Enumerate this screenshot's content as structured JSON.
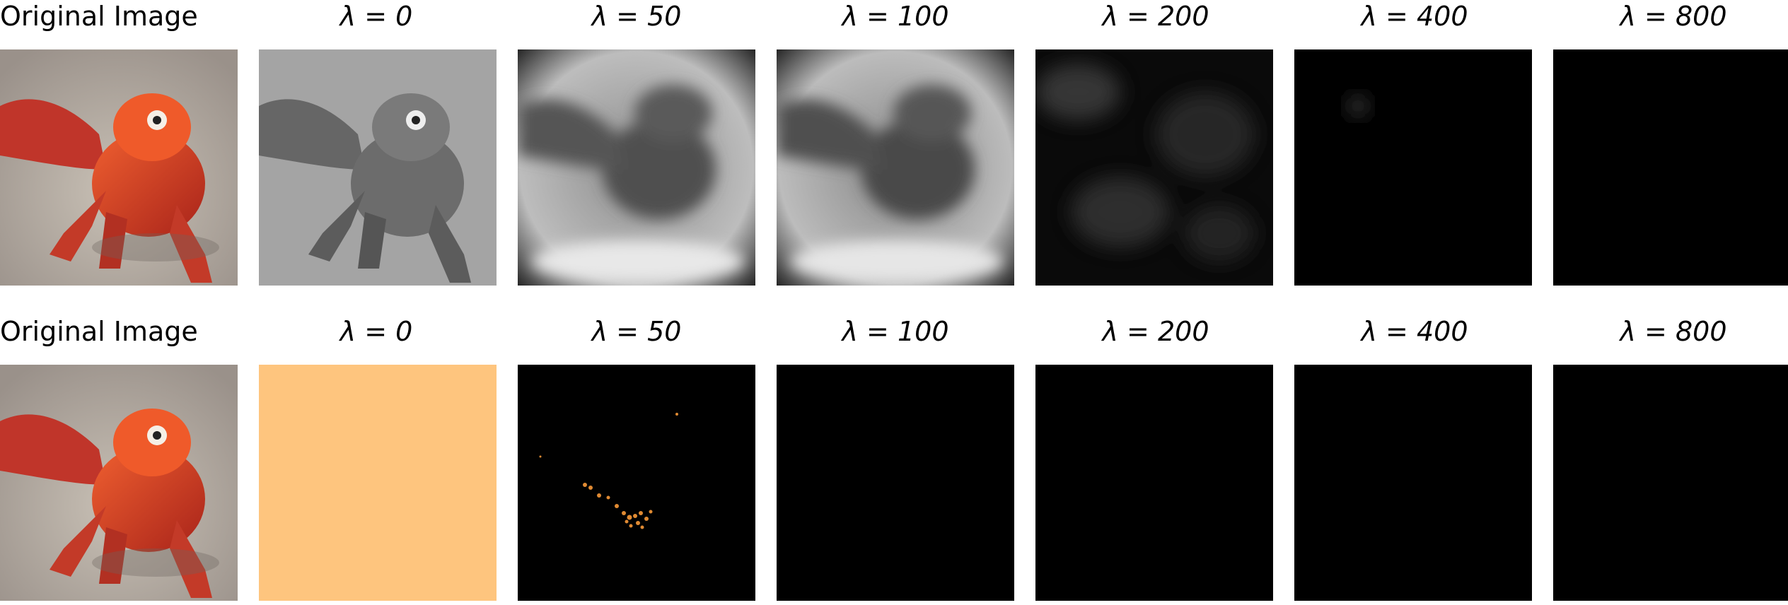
{
  "figure": {
    "rows": [
      {
        "titles": [
          "Original Image",
          "λ = 0",
          "λ = 50",
          "λ = 100",
          "λ = 200",
          "λ = 400",
          "λ = 800"
        ],
        "panels": [
          {
            "kind": "original-photo",
            "subject": "red lizard on sand"
          },
          {
            "kind": "grayscale-photo"
          },
          {
            "kind": "blurred-grayscale"
          },
          {
            "kind": "blurred-grayscale"
          },
          {
            "kind": "dark-blotchy"
          },
          {
            "kind": "near-black"
          },
          {
            "kind": "black"
          }
        ]
      },
      {
        "titles": [
          "Original Image",
          "λ = 0",
          "λ = 50",
          "λ = 100",
          "λ = 200",
          "λ = 400",
          "λ = 800"
        ],
        "panels": [
          {
            "kind": "original-photo",
            "subject": "red lizard on sand"
          },
          {
            "kind": "solid-color",
            "color": "#fec57e"
          },
          {
            "kind": "sparse-orange-specks"
          },
          {
            "kind": "black"
          },
          {
            "kind": "black"
          },
          {
            "kind": "black"
          },
          {
            "kind": "black"
          }
        ]
      }
    ]
  }
}
